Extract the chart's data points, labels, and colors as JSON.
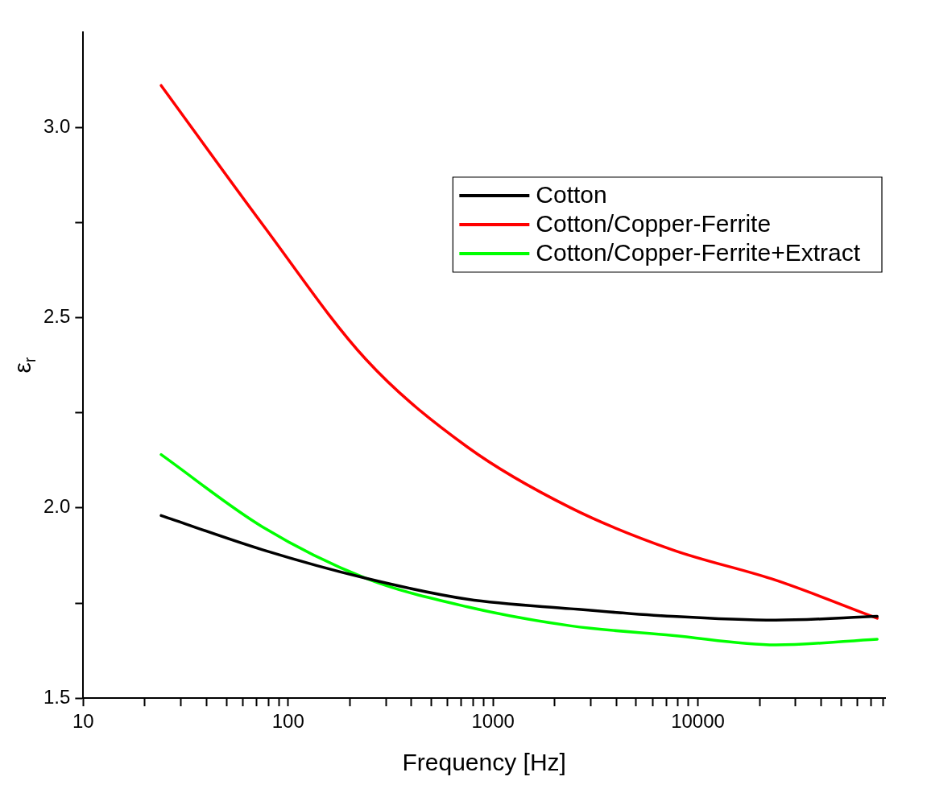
{
  "chart_data": {
    "type": "line",
    "xlabel": "Frequency [Hz]",
    "ylabel": "ε$_{r}$",
    "log": "x",
    "legend": "top right",
    "grid": false,
    "marker": "none",
    "line_style": "solid",
    "x": [
      24,
      75,
      240,
      750,
      2400,
      7500,
      24000,
      75000
    ],
    "xlim": [
      10,
      82000
    ],
    "xticks": [
      10,
      {
        "value": 20,
        "label": null
      },
      {
        "value": 30,
        "label": null
      },
      {
        "value": 40,
        "label": null
      },
      {
        "value": 50,
        "label": null
      },
      {
        "value": 60,
        "label": null
      },
      {
        "value": 70,
        "label": null
      },
      {
        "value": 80,
        "label": null
      },
      {
        "value": 90,
        "label": null
      },
      100,
      {
        "value": 200,
        "label": null
      },
      {
        "value": 300,
        "label": null
      },
      {
        "value": 400,
        "label": null
      },
      {
        "value": 500,
        "label": null
      },
      {
        "value": 600,
        "label": null
      },
      {
        "value": 700,
        "label": null
      },
      {
        "value": 800,
        "label": null
      },
      {
        "value": 900,
        "label": null
      },
      1000,
      {
        "value": 2000,
        "label": null
      },
      {
        "value": 3000,
        "label": null
      },
      {
        "value": 4000,
        "label": null
      },
      {
        "value": 5000,
        "label": null
      },
      {
        "value": 6000,
        "label": null
      },
      {
        "value": 7000,
        "label": null
      },
      {
        "value": 8000,
        "label": null
      },
      {
        "value": 9000,
        "label": null
      },
      10000,
      {
        "value": 20000,
        "label": null
      },
      {
        "value": 30000,
        "label": null
      },
      {
        "value": 40000,
        "label": null
      },
      {
        "value": 50000,
        "label": null
      },
      {
        "value": 60000,
        "label": null
      },
      {
        "value": 70000,
        "label": null
      },
      {
        "value": 80000,
        "label": null
      }
    ],
    "ylim": [
      1.5,
      3.25
    ],
    "yticks": [
      {
        "value": 1.5,
        "label": "1.5"
      },
      {
        "value": 1.75,
        "label": null
      },
      {
        "value": 2,
        "label": "2.0"
      },
      {
        "value": 2.25,
        "label": null
      },
      {
        "value": 2.5,
        "label": "2.5"
      },
      {
        "value": 2.75,
        "label": null
      },
      {
        "value": 3,
        "label": "3.0"
      }
    ],
    "series": [
      {
        "name": "Cotton",
        "color": "#000000",
        "values": [
          1.98,
          1.89,
          1.815,
          1.76,
          1.735,
          1.715,
          1.705,
          1.715
        ]
      },
      {
        "name": "Cotton/Copper-Ferrite",
        "color": "#ff0000",
        "values": [
          3.11,
          2.745,
          2.39,
          2.16,
          2.0,
          1.89,
          1.81,
          1.71
        ]
      },
      {
        "name": "Cotton/Copper-Ferrite+Extract",
        "color": "#00ff00",
        "values": [
          2.14,
          1.95,
          1.815,
          1.74,
          1.69,
          1.665,
          1.64,
          1.655
        ]
      }
    ]
  }
}
